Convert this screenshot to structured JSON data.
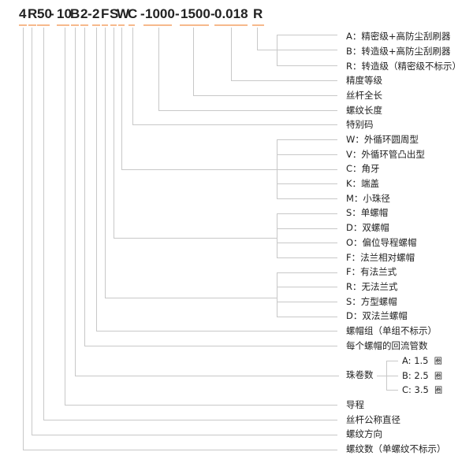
{
  "code_segments": [
    "4",
    "R",
    "50",
    "-",
    "10",
    "B",
    "2",
    "-",
    "2",
    "F",
    "S",
    "W",
    "C",
    "-",
    "1000",
    "-",
    "1500",
    "-",
    "0.018",
    "R"
  ],
  "labels": {
    "grade_A": "A：精密级+高防尘刮刷器",
    "grade_B": "B：转造级+高防尘刮刷器",
    "grade_R": "R：转造级（精密级不标示）",
    "precision": "精度等级",
    "screw_length": "丝杆全长",
    "thread_length": "螺纹长度",
    "special_code": "特别码",
    "W": "W：外循环圆周型",
    "V": "V：外循环管凸出型",
    "C": "C：角牙",
    "K": "K：端盖",
    "M": "M：小珠径",
    "S_nut": "S：单螺帽",
    "D_nut": "D：双螺帽",
    "O_nut": "O：偏位导程螺帽",
    "F_nut": "F：法兰相对螺帽",
    "F_flange": "F：有法兰式",
    "R_flange": "R：无法兰式",
    "S_flange": "S：方型螺帽",
    "D_flange": "D：双法兰螺帽",
    "nut_group": "螺帽组（单组不标示）",
    "return_tubes": "每个螺帽的回流管数",
    "turns": "珠卷数",
    "turns_A": "A: 1.5",
    "turns_B": "B: 2.5",
    "turns_C": "C: 3.5",
    "turns_unit": "圈",
    "lead": "导程",
    "nominal_diameter": "丝杆公称直径",
    "thread_direction": "螺纹方向",
    "thread_count": "螺纹数（单螺纹不标示）"
  },
  "colors": {
    "underline": "#f6b98c",
    "lines": "#c8c8c8",
    "text": "#222222"
  }
}
